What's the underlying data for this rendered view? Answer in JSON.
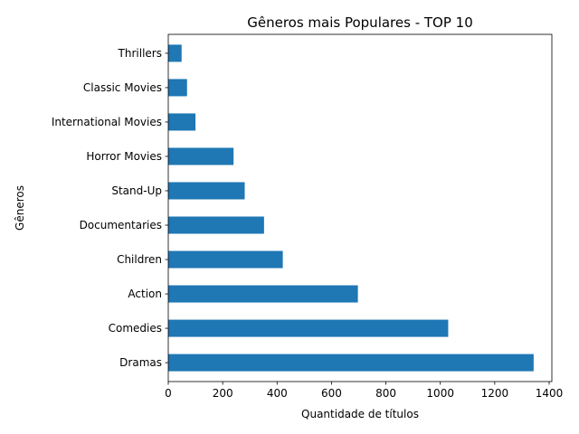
{
  "chart_data": {
    "type": "bar",
    "orientation": "horizontal",
    "title": "Gêneros mais Populares - TOP 10",
    "xlabel": "Quantidade de títulos",
    "ylabel": "Gêneros",
    "categories": [
      "Dramas",
      "Comedies",
      "Action",
      "Children",
      "Documentaries",
      "Stand-Up",
      "Horror Movies",
      "International Movies",
      "Classic Movies",
      "Thrillers"
    ],
    "values": [
      1343,
      1029,
      697,
      421,
      352,
      281,
      240,
      100,
      69,
      49
    ],
    "xlim": [
      0,
      1410
    ],
    "xticks": [
      0,
      200,
      400,
      600,
      800,
      1000,
      1200,
      1400
    ],
    "grid": false,
    "bar_color": "#1f77b4"
  }
}
